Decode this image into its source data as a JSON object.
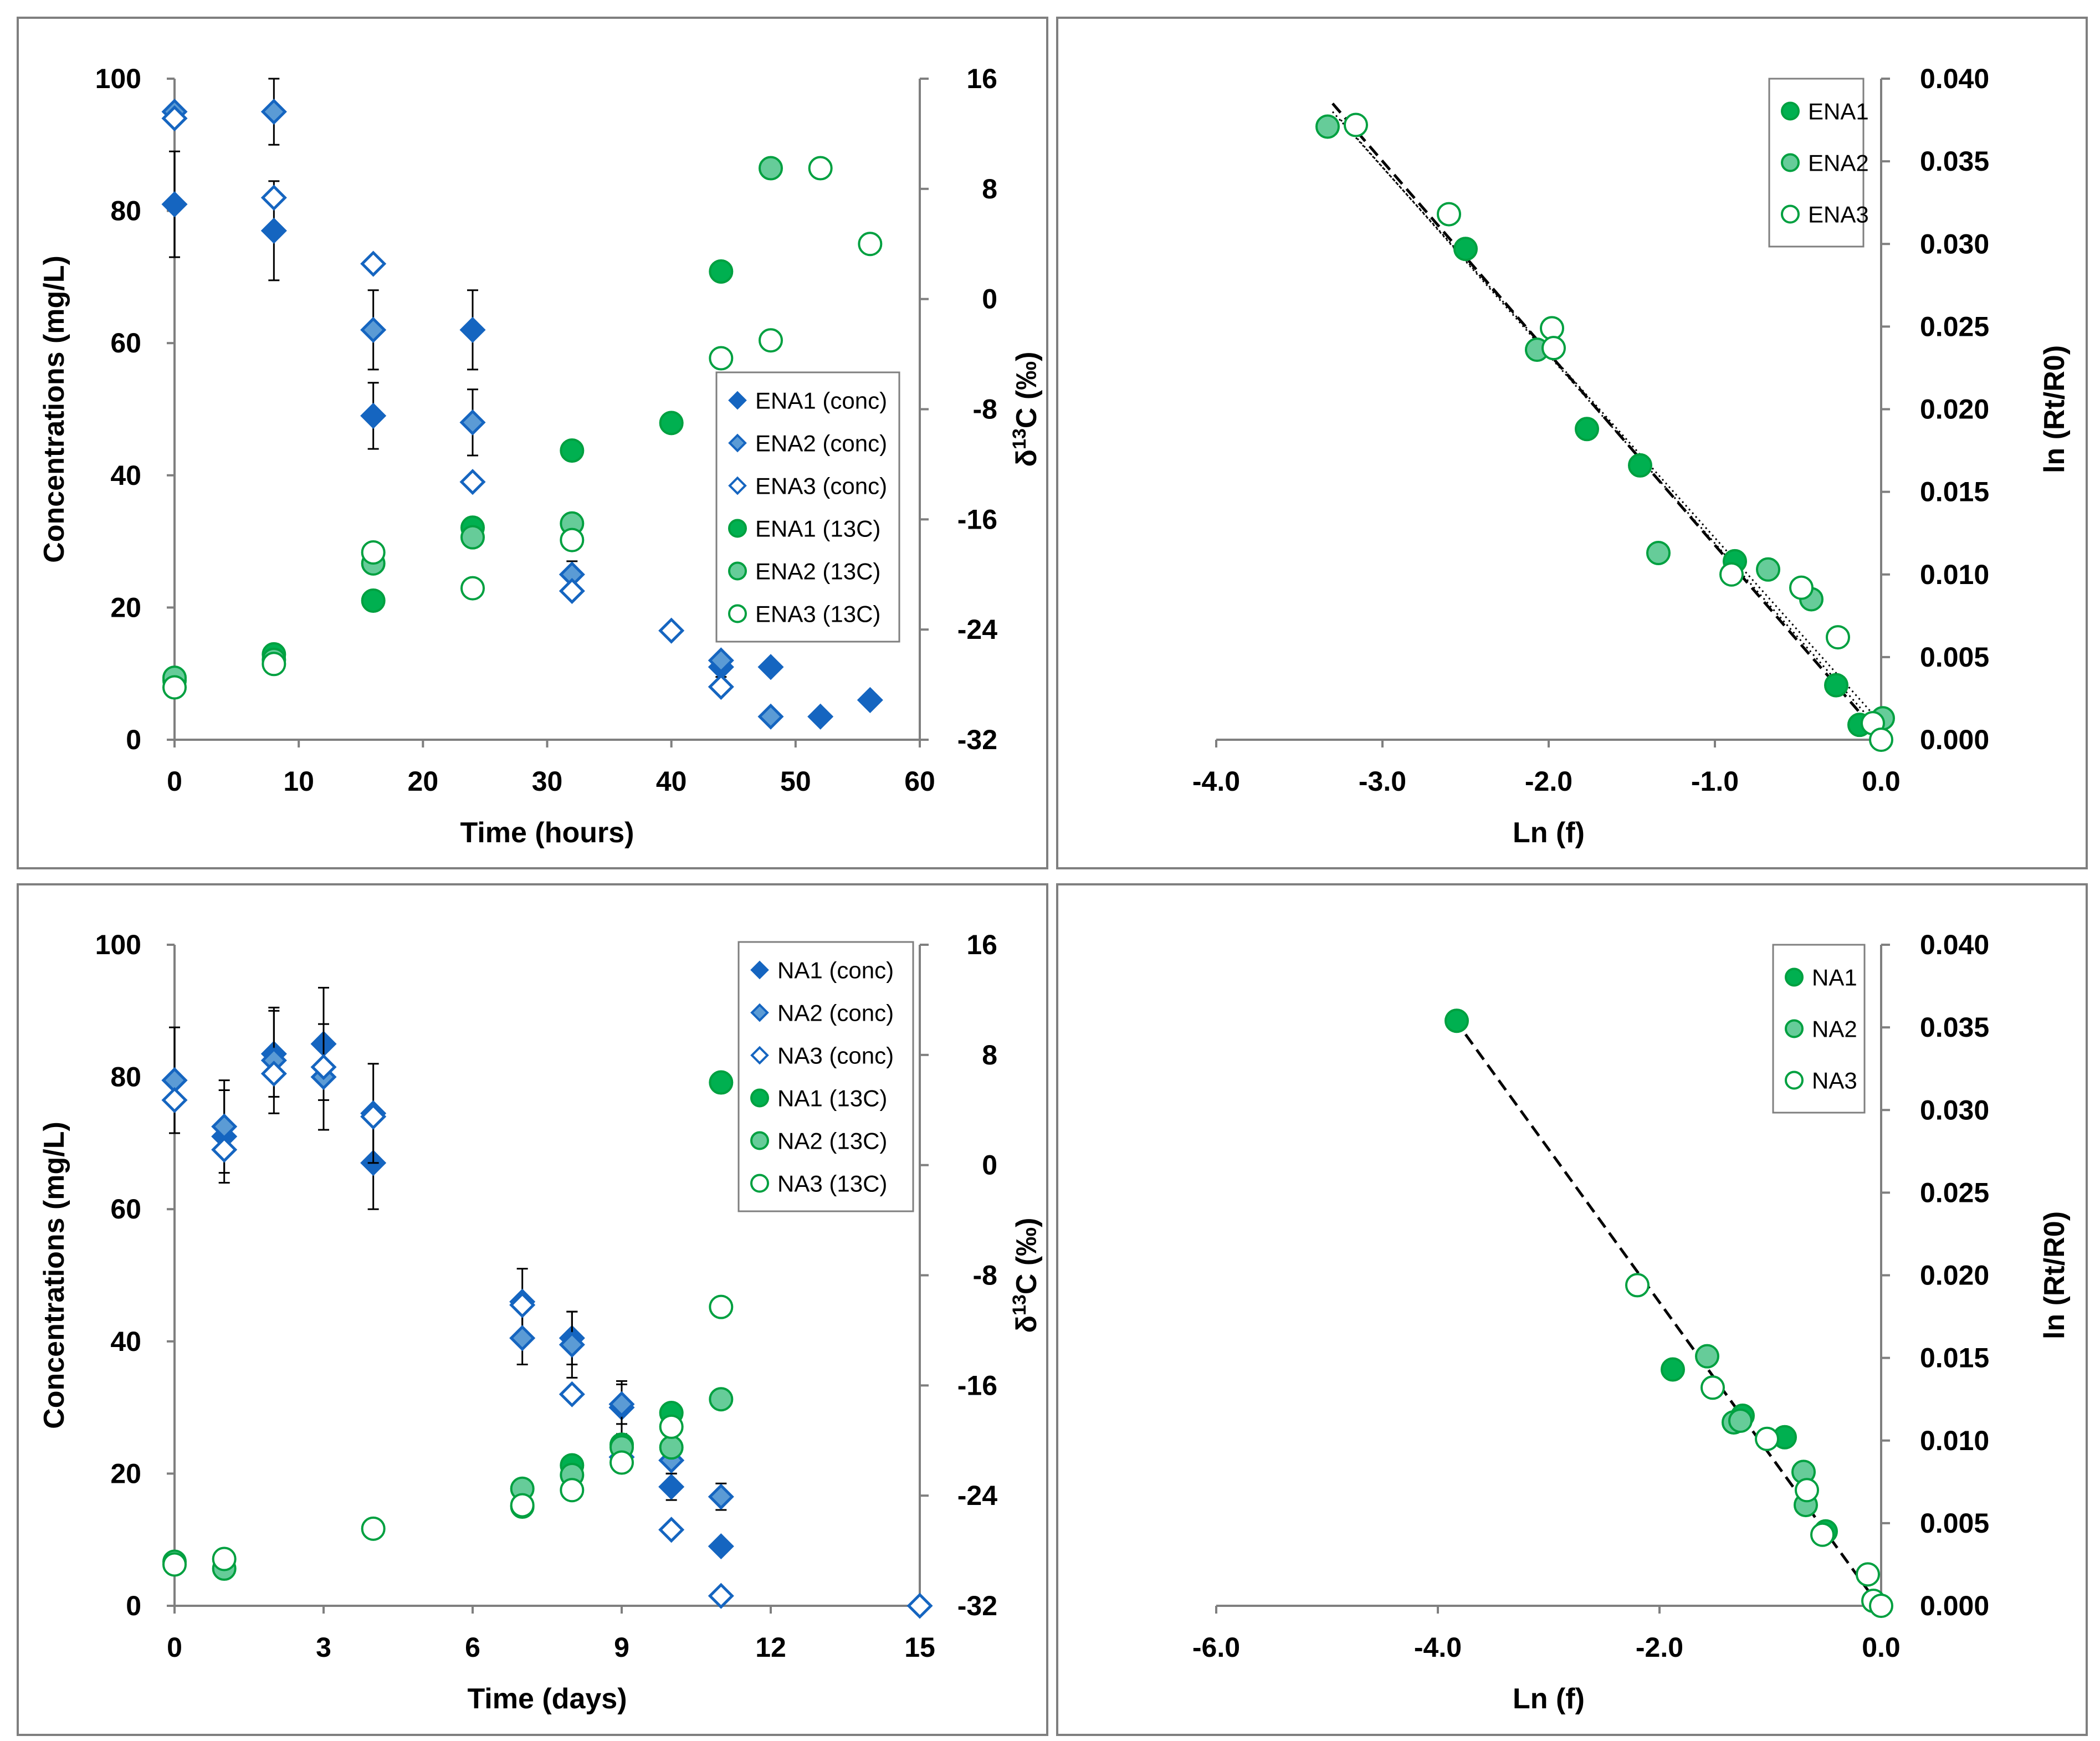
{
  "figure": "four-panel degradation and isotope enrichment plot",
  "colors": {
    "blue_dark": "#1565C0",
    "blue_light": "#5B9BD5",
    "green_dark": "#00B050",
    "green_light": "#66CC99",
    "green_stroke": "#00A040",
    "frame": "#7F7F7F"
  },
  "chart_data": [
    {
      "id": "panel-a",
      "type": "scatter",
      "xlabel": "Time (hours)",
      "ylabel": "Concentrations (mg/L)",
      "y2label": "δ13C (‰)",
      "y2label_main": "δ",
      "y2label_sup": "13",
      "y2label_rest": "C (‰)",
      "xlim": [
        0,
        60
      ],
      "ylim": [
        0,
        100
      ],
      "y2lim": [
        -32,
        16
      ],
      "xticks": [
        "0",
        "10",
        "20",
        "30",
        "40",
        "50",
        "60"
      ],
      "yticks": [
        "0",
        "20",
        "40",
        "60",
        "80",
        "100"
      ],
      "y2ticks": [
        "-32",
        "-24",
        "-16",
        "-8",
        "0",
        "8",
        "16"
      ],
      "legend_position": "center-right",
      "series": [
        {
          "name": "ENA1 (conc)",
          "axis": "y",
          "marker": "diamond",
          "fill": "blue_dark",
          "x": [
            0,
            8,
            16,
            24,
            44,
            48,
            52,
            56
          ],
          "y": [
            81,
            77,
            49,
            62,
            11,
            11,
            3.5,
            6
          ],
          "err": [
            8,
            7.5,
            5,
            6,
            1.5,
            0.8,
            0,
            0
          ]
        },
        {
          "name": "ENA2 (conc)",
          "axis": "y",
          "marker": "diamond",
          "fill": "blue_light",
          "x": [
            0,
            8,
            16,
            24,
            32,
            44,
            48
          ],
          "y": [
            95,
            95,
            62,
            48,
            25,
            12,
            3.5
          ],
          "err": [
            0,
            5,
            6,
            5,
            2,
            1,
            0.8
          ]
        },
        {
          "name": "ENA3 (conc)",
          "axis": "y",
          "marker": "diamond",
          "fill": "none",
          "x": [
            0,
            8,
            16,
            24,
            32,
            40,
            44
          ],
          "y": [
            94,
            82,
            72,
            39,
            22.5,
            16.5,
            8
          ],
          "err": [
            0,
            0,
            0,
            0,
            0,
            0,
            0
          ]
        },
        {
          "name": "ENA1 (13C)",
          "axis": "y2",
          "marker": "circle",
          "fill": "green_dark",
          "x": [
            0,
            8,
            16,
            24,
            32,
            40,
            44
          ],
          "y": [
            -27.7,
            -25.8,
            -21.9,
            -16.6,
            -11,
            -9,
            2
          ]
        },
        {
          "name": "ENA2 (13C)",
          "axis": "y2",
          "marker": "circle",
          "fill": "green_light",
          "x": [
            0,
            8,
            16,
            24,
            32,
            48
          ],
          "y": [
            -27.5,
            -26.2,
            -19.2,
            -17.3,
            -16.3,
            9.5
          ]
        },
        {
          "name": "ENA3 (13C)",
          "axis": "y2",
          "marker": "circle",
          "fill": "none",
          "x": [
            0,
            8,
            16,
            24,
            32,
            44,
            48,
            52,
            56
          ],
          "y": [
            -28.2,
            -26.5,
            -18.4,
            -21,
            -17.5,
            -4.3,
            -3,
            9.5,
            4
          ]
        }
      ]
    },
    {
      "id": "panel-b",
      "type": "scatter",
      "xlabel": "Ln (f)",
      "ylabel": "ln (Rt/R0)",
      "xlim": [
        -4,
        0
      ],
      "ylim": [
        0,
        0.04
      ],
      "xticks": [
        "-4.0",
        "-3.0",
        "-2.0",
        "-1.0",
        "0.0"
      ],
      "yticks": [
        "0.000",
        "0.005",
        "0.010",
        "0.015",
        "0.020",
        "0.025",
        "0.030",
        "0.035",
        "0.040"
      ],
      "legend_position": "top-right",
      "fit_line": {
        "x": [
          -3.3,
          -0.03
        ],
        "y": [
          0.0385,
          0.0005
        ]
      },
      "band_upper": {
        "x": [
          -3.3,
          0.0
        ],
        "y": [
          0.038,
          0.001
        ]
      },
      "band_lower": {
        "x": [
          -3.25,
          0.0
        ],
        "y": [
          0.0375,
          0.0005
        ]
      },
      "series": [
        {
          "name": "ENA1",
          "marker": "circle",
          "fill": "green_dark",
          "x": [
            -2.5,
            -1.77,
            -1.45,
            -0.88,
            -0.27,
            -0.13
          ],
          "y": [
            0.0297,
            0.0188,
            0.0166,
            0.0108,
            0.0033,
            0.0009
          ]
        },
        {
          "name": "ENA2",
          "marker": "circle",
          "fill": "green_light",
          "x": [
            -3.33,
            -2.07,
            -1.34,
            -0.68,
            -0.42,
            0.01
          ],
          "y": [
            0.0371,
            0.0236,
            0.0113,
            0.0103,
            0.0085,
            0.0013
          ]
        },
        {
          "name": "ENA3",
          "marker": "circle",
          "fill": "none",
          "x": [
            -3.16,
            -2.6,
            -1.98,
            -1.97,
            -0.9,
            -0.48,
            -0.26,
            -0.05,
            0.0
          ],
          "y": [
            0.0372,
            0.0318,
            0.0249,
            0.0237,
            0.01,
            0.0092,
            0.0062,
            0.001,
            0.0
          ]
        }
      ]
    },
    {
      "id": "panel-c",
      "type": "scatter",
      "xlabel": "Time (days)",
      "ylabel": "Concentrations (mg/L)",
      "y2label": "δ13C (‰)",
      "y2label_main": "δ",
      "y2label_sup": "13",
      "y2label_rest": "C (‰)",
      "xlim": [
        0,
        15
      ],
      "ylim": [
        0,
        100
      ],
      "y2lim": [
        -32,
        16
      ],
      "xticks": [
        "0",
        "3",
        "6",
        "9",
        "12",
        "15"
      ],
      "yticks": [
        "0",
        "20",
        "40",
        "60",
        "80",
        "100"
      ],
      "y2ticks": [
        "-32",
        "-24",
        "-16",
        "-8",
        "0",
        "8",
        "16"
      ],
      "legend_position": "top-right",
      "series": [
        {
          "name": "NA1 (conc)",
          "axis": "y",
          "marker": "diamond",
          "fill": "blue_dark",
          "x": [
            0,
            1,
            2,
            3,
            4,
            7,
            8,
            9,
            10,
            11
          ],
          "y": [
            79.5,
            71,
            83.5,
            85,
            67,
            46,
            40.5,
            30,
            18,
            9
          ],
          "err": [
            8,
            7,
            6.5,
            8.5,
            7,
            5,
            4,
            4,
            2,
            0
          ]
        },
        {
          "name": "NA2 (conc)",
          "axis": "y",
          "marker": "diamond",
          "fill": "blue_light",
          "x": [
            0,
            1,
            2,
            3,
            4,
            7,
            8,
            9,
            10,
            11
          ],
          "y": [
            79.5,
            72.5,
            82.5,
            80,
            74.5,
            40.5,
            39.5,
            30.5,
            22,
            16.5
          ],
          "err": [
            0,
            7,
            8,
            8,
            7.5,
            4,
            5,
            3,
            2,
            2
          ]
        },
        {
          "name": "NA3 (conc)",
          "axis": "y",
          "marker": "diamond",
          "fill": "none",
          "x": [
            0,
            1,
            2,
            3,
            4,
            7,
            8,
            9,
            10,
            11,
            15
          ],
          "y": [
            76.5,
            69,
            80.5,
            81.5,
            74,
            45.5,
            32,
            22.5,
            11.5,
            1.5,
            0
          ],
          "err": [
            0,
            0,
            0,
            0,
            0,
            0,
            0,
            0,
            0,
            0,
            0
          ]
        },
        {
          "name": "NA1 (13C)",
          "axis": "y2",
          "marker": "circle",
          "fill": "green_dark",
          "x": [
            7,
            8,
            9,
            10,
            11
          ],
          "y": [
            -24.8,
            -21.8,
            -20.3,
            -18,
            6
          ]
        },
        {
          "name": "NA2 (13C)",
          "axis": "y2",
          "marker": "circle",
          "fill": "green_light",
          "x": [
            0,
            1,
            7,
            8,
            9,
            10,
            11
          ],
          "y": [
            -28.8,
            -29.3,
            -23.5,
            -22.5,
            -20.5,
            -20.5,
            -17
          ]
        },
        {
          "name": "NA3 (13C)",
          "axis": "y2",
          "marker": "circle",
          "fill": "none",
          "x": [
            0,
            1,
            4,
            7,
            8,
            9,
            10,
            11
          ],
          "y": [
            -29,
            -28.6,
            -26.4,
            -24.7,
            -23.6,
            -21.6,
            -19,
            -10.3
          ]
        }
      ]
    },
    {
      "id": "panel-d",
      "type": "scatter",
      "xlabel": "Ln (f)",
      "ylabel": "ln (Rt/R0)",
      "xlim": [
        -6,
        0
      ],
      "ylim": [
        0,
        0.04
      ],
      "xticks": [
        "-6.0",
        "-4.0",
        "-2.0",
        "0.0"
      ],
      "yticks": [
        "0.000",
        "0.005",
        "0.010",
        "0.015",
        "0.020",
        "0.025",
        "0.030",
        "0.035",
        "0.040"
      ],
      "legend_position": "top-right",
      "fit_line": {
        "x": [
          -3.85,
          -0.05
        ],
        "y": [
          0.0355,
          0.0003
        ]
      },
      "series": [
        {
          "name": "NA1",
          "marker": "circle",
          "fill": "green_dark",
          "x": [
            -3.83,
            -1.88,
            -1.25,
            -0.87,
            -0.5
          ],
          "y": [
            0.0354,
            0.0143,
            0.0115,
            0.0102,
            0.0045
          ]
        },
        {
          "name": "NA2",
          "marker": "circle",
          "fill": "green_light",
          "x": [
            -1.57,
            -1.33,
            -1.27,
            -0.7,
            -0.68
          ],
          "y": [
            0.0151,
            0.0111,
            0.0112,
            0.0081,
            0.0061
          ]
        },
        {
          "name": "NA3",
          "marker": "circle",
          "fill": "none",
          "x": [
            -2.2,
            -1.52,
            -1.03,
            -0.67,
            -0.53,
            -0.12,
            -0.07,
            0.0
          ],
          "y": [
            0.0194,
            0.0132,
            0.0101,
            0.007,
            0.0043,
            0.0019,
            0.0003,
            0.0
          ]
        }
      ]
    }
  ]
}
